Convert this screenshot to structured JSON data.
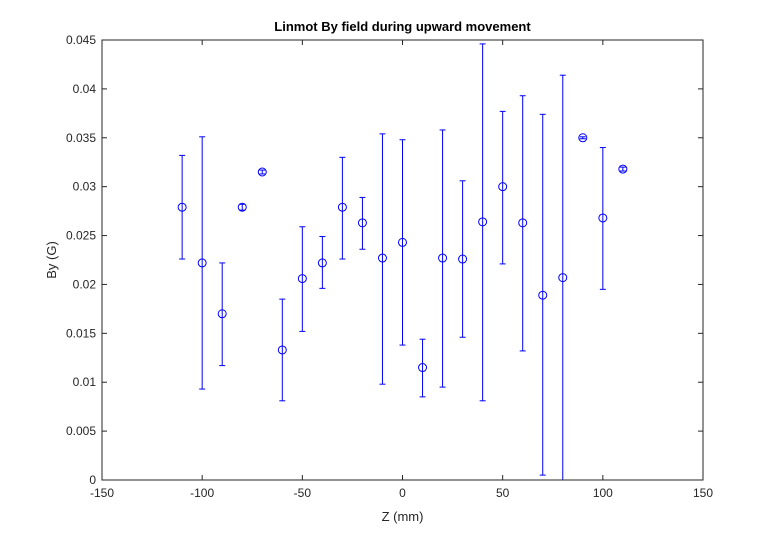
{
  "chart_data": {
    "type": "scatter",
    "title": "Linmot By field during upward movement",
    "xlabel": "Z (mm)",
    "ylabel": "By (G)",
    "xlim": [
      -150,
      150
    ],
    "ylim": [
      0,
      0.045
    ],
    "xticks": [
      -150,
      -100,
      -50,
      0,
      50,
      100,
      150
    ],
    "xtick_labels": [
      "-150",
      "-100",
      "-50",
      "0",
      "50",
      "100",
      "150"
    ],
    "yticks": [
      0,
      0.005,
      0.01,
      0.015,
      0.02,
      0.025,
      0.03,
      0.035,
      0.04,
      0.045
    ],
    "ytick_labels": [
      "0",
      "0.005",
      "0.01",
      "0.015",
      "0.02",
      "0.025",
      "0.03",
      "0.035",
      "0.04",
      "0.045"
    ],
    "grid": false,
    "legend": "none",
    "marker": "open-circle",
    "color": "#0000ff",
    "series": [
      {
        "x": [
          -110,
          -100,
          -90,
          -80,
          -70,
          -60,
          -50,
          -40,
          -30,
          -20,
          -10,
          0,
          10,
          20,
          30,
          40,
          50,
          60,
          70,
          80,
          90,
          100,
          110
        ],
        "y": [
          0.0279,
          0.0222,
          0.017,
          0.0279,
          0.0315,
          0.0133,
          0.0206,
          0.0222,
          0.0279,
          0.0263,
          0.0227,
          0.0243,
          0.0115,
          0.0227,
          0.0226,
          0.0264,
          0.03,
          0.0263,
          0.0189,
          0.0207,
          0.035,
          0.0268,
          0.0318
        ],
        "yerr_low": [
          0.0226,
          0.0093,
          0.0117,
          0.0276,
          0.0313,
          0.0081,
          0.0152,
          0.0196,
          0.0226,
          0.0236,
          0.0098,
          0.0138,
          0.0085,
          0.0095,
          0.0146,
          0.0081,
          0.0221,
          0.0132,
          0.0005,
          0.0,
          0.0349,
          0.0195,
          0.0316
        ],
        "yerr_high": [
          0.0332,
          0.0351,
          0.0222,
          0.0282,
          0.0317,
          0.0185,
          0.0259,
          0.0249,
          0.033,
          0.0289,
          0.0354,
          0.0348,
          0.0144,
          0.0358,
          0.0306,
          0.0446,
          0.0377,
          0.0393,
          0.0374,
          0.0414,
          0.0351,
          0.034,
          0.032
        ]
      }
    ]
  }
}
